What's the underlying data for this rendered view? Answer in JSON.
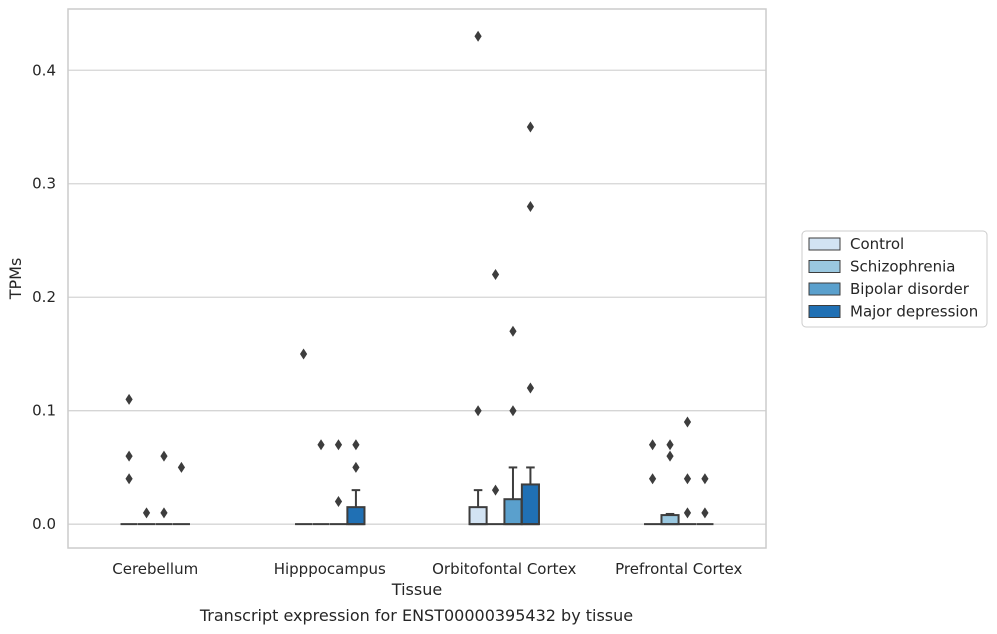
{
  "caption": "Transcript expression for ENST00000395432 by tissue",
  "chart_data": {
    "type": "box",
    "xlabel": "Tissue",
    "ylabel": "TPMs",
    "ylim": [
      -0.021,
      0.454
    ],
    "yticks": [
      0.0,
      0.1,
      0.2,
      0.3,
      0.4
    ],
    "ytick_labels": [
      "0.0",
      "0.1",
      "0.2",
      "0.3",
      "0.4"
    ],
    "grid": "horizontal",
    "legend_position": "right",
    "categories": [
      "Cerebellum",
      "Hipppocampus",
      "Orbitofontal Cortex",
      "Prefrontal Cortex"
    ],
    "series": [
      {
        "name": "Control",
        "color": "#d2e3f3",
        "boxes": [
          {
            "q1": 0,
            "median": 0,
            "q3": 0,
            "whislo": 0,
            "whishi": 0,
            "fliers": [
              0.06,
              0.04,
              0.11
            ]
          },
          {
            "q1": 0,
            "median": 0,
            "q3": 0,
            "whislo": 0,
            "whishi": 0,
            "fliers": [
              0.15
            ]
          },
          {
            "q1": 0,
            "median": 0,
            "q3": 0.015,
            "whislo": 0,
            "whishi": 0.03,
            "fliers": [
              0.1,
              0.43
            ]
          },
          {
            "q1": 0,
            "median": 0,
            "q3": 0,
            "whislo": 0,
            "whishi": 0,
            "fliers": [
              0.07,
              0.04
            ]
          }
        ]
      },
      {
        "name": "Schizophrenia",
        "color": "#9ac8e0",
        "boxes": [
          {
            "q1": 0,
            "median": 0,
            "q3": 0,
            "whislo": 0,
            "whishi": 0,
            "fliers": [
              0.01
            ]
          },
          {
            "q1": 0,
            "median": 0,
            "q3": 0,
            "whislo": 0,
            "whishi": 0,
            "fliers": [
              0.07
            ]
          },
          {
            "q1": 0,
            "median": 0,
            "q3": 0,
            "whislo": 0,
            "whishi": 0,
            "fliers": [
              0.03,
              0.22
            ]
          },
          {
            "q1": 0,
            "median": 0,
            "q3": 0.008,
            "whislo": 0,
            "whishi": 0.009,
            "fliers": [
              0.07,
              0.06
            ]
          }
        ]
      },
      {
        "name": "Bipolar disorder",
        "color": "#5aa0cd",
        "boxes": [
          {
            "q1": 0,
            "median": 0,
            "q3": 0,
            "whislo": 0,
            "whishi": 0,
            "fliers": [
              0.06,
              0.01
            ]
          },
          {
            "q1": 0,
            "median": 0,
            "q3": 0,
            "whislo": 0,
            "whishi": 0,
            "fliers": [
              0.07,
              0.02
            ]
          },
          {
            "q1": 0,
            "median": 0,
            "q3": 0.022,
            "whislo": 0,
            "whishi": 0.05,
            "fliers": [
              0.1,
              0.17
            ]
          },
          {
            "q1": 0,
            "median": 0,
            "q3": 0,
            "whislo": 0,
            "whishi": 0,
            "fliers": [
              0.09,
              0.04,
              0.01
            ]
          }
        ]
      },
      {
        "name": "Major depression",
        "color": "#2070b4",
        "boxes": [
          {
            "q1": 0,
            "median": 0,
            "q3": 0,
            "whislo": 0,
            "whishi": 0,
            "fliers": [
              0.05
            ]
          },
          {
            "q1": 0,
            "median": 0,
            "q3": 0.015,
            "whislo": 0,
            "whishi": 0.03,
            "fliers": [
              0.07,
              0.05
            ]
          },
          {
            "q1": 0,
            "median": 0,
            "q3": 0.035,
            "whislo": 0,
            "whishi": 0.05,
            "fliers": [
              0.12,
              0.28,
              0.35
            ]
          },
          {
            "q1": 0,
            "median": 0,
            "q3": 0,
            "whislo": 0,
            "whishi": 0,
            "fliers": [
              0.04,
              0.01
            ]
          }
        ]
      }
    ]
  }
}
